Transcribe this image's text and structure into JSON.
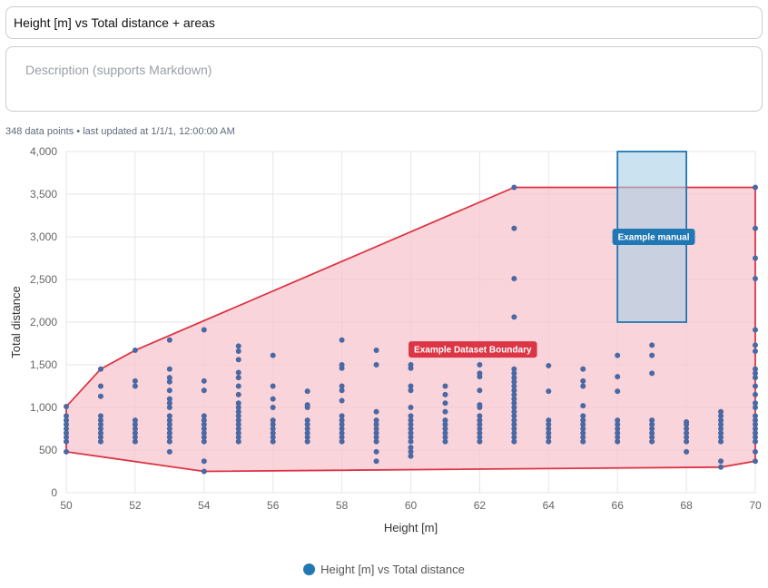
{
  "header": {
    "title_value": "Height [m] vs Total distance + areas",
    "description_placeholder": "Description (supports Markdown)",
    "meta_text": "348 data points • last updated at 1/1/1, 12:00:00 AM"
  },
  "chart_data": {
    "type": "scatter",
    "xlabel": "Height [m]",
    "ylabel": "Total distance",
    "xlim": [
      50,
      70
    ],
    "ylim": [
      0,
      4000
    ],
    "x_ticks": [
      50,
      52,
      54,
      56,
      58,
      60,
      62,
      64,
      66,
      68,
      70
    ],
    "y_ticks": [
      0,
      500,
      1000,
      1500,
      2000,
      2500,
      3000,
      3500,
      4000
    ],
    "y_tick_labels": [
      "0",
      "500",
      "1,000",
      "1,500",
      "2,000",
      "2,500",
      "3,000",
      "3,500",
      "4,000"
    ],
    "grid": true,
    "legend_position": "bottom-center",
    "series": [
      {
        "name": "Height [m] vs Total distance",
        "color": "#4a68a3",
        "points": [
          [
            50,
            480
          ],
          [
            50,
            600
          ],
          [
            50,
            650
          ],
          [
            50,
            700
          ],
          [
            50,
            750
          ],
          [
            50,
            800
          ],
          [
            50,
            850
          ],
          [
            50,
            900
          ],
          [
            50,
            1010
          ],
          [
            51,
            600
          ],
          [
            51,
            650
          ],
          [
            51,
            700
          ],
          [
            51,
            750
          ],
          [
            51,
            800
          ],
          [
            51,
            850
          ],
          [
            51,
            900
          ],
          [
            51,
            1130
          ],
          [
            51,
            1250
          ],
          [
            51,
            1450
          ],
          [
            52,
            600
          ],
          [
            52,
            650
          ],
          [
            52,
            700
          ],
          [
            52,
            750
          ],
          [
            52,
            800
          ],
          [
            52,
            850
          ],
          [
            52,
            1250
          ],
          [
            52,
            1310
          ],
          [
            52,
            1670
          ],
          [
            53,
            480
          ],
          [
            53,
            600
          ],
          [
            53,
            650
          ],
          [
            53,
            700
          ],
          [
            53,
            750
          ],
          [
            53,
            800
          ],
          [
            53,
            850
          ],
          [
            53,
            900
          ],
          [
            53,
            1000
          ],
          [
            53,
            1050
          ],
          [
            53,
            1100
          ],
          [
            53,
            1200
          ],
          [
            53,
            1300
          ],
          [
            53,
            1350
          ],
          [
            53,
            1450
          ],
          [
            53,
            1790
          ],
          [
            54,
            250
          ],
          [
            54,
            370
          ],
          [
            54,
            600
          ],
          [
            54,
            650
          ],
          [
            54,
            700
          ],
          [
            54,
            750
          ],
          [
            54,
            800
          ],
          [
            54,
            850
          ],
          [
            54,
            900
          ],
          [
            54,
            1200
          ],
          [
            54,
            1310
          ],
          [
            54,
            1910
          ],
          [
            55,
            600
          ],
          [
            55,
            650
          ],
          [
            55,
            700
          ],
          [
            55,
            750
          ],
          [
            55,
            800
          ],
          [
            55,
            850
          ],
          [
            55,
            900
          ],
          [
            55,
            950
          ],
          [
            55,
            1000
          ],
          [
            55,
            1050
          ],
          [
            55,
            1150
          ],
          [
            55,
            1250
          ],
          [
            55,
            1350
          ],
          [
            55,
            1410
          ],
          [
            55,
            1560
          ],
          [
            55,
            1660
          ],
          [
            55,
            1720
          ],
          [
            56,
            600
          ],
          [
            56,
            650
          ],
          [
            56,
            700
          ],
          [
            56,
            750
          ],
          [
            56,
            800
          ],
          [
            56,
            850
          ],
          [
            56,
            1000
          ],
          [
            56,
            1100
          ],
          [
            56,
            1250
          ],
          [
            56,
            1610
          ],
          [
            57,
            600
          ],
          [
            57,
            650
          ],
          [
            57,
            700
          ],
          [
            57,
            750
          ],
          [
            57,
            800
          ],
          [
            57,
            850
          ],
          [
            57,
            1000
          ],
          [
            57,
            1030
          ],
          [
            57,
            1190
          ],
          [
            58,
            600
          ],
          [
            58,
            650
          ],
          [
            58,
            700
          ],
          [
            58,
            750
          ],
          [
            58,
            800
          ],
          [
            58,
            850
          ],
          [
            58,
            900
          ],
          [
            58,
            1080
          ],
          [
            58,
            1200
          ],
          [
            58,
            1250
          ],
          [
            58,
            1460
          ],
          [
            58,
            1500
          ],
          [
            58,
            1790
          ],
          [
            59,
            370
          ],
          [
            59,
            480
          ],
          [
            59,
            600
          ],
          [
            59,
            650
          ],
          [
            59,
            700
          ],
          [
            59,
            750
          ],
          [
            59,
            800
          ],
          [
            59,
            850
          ],
          [
            59,
            950
          ],
          [
            59,
            1500
          ],
          [
            59,
            1670
          ],
          [
            60,
            430
          ],
          [
            60,
            480
          ],
          [
            60,
            530
          ],
          [
            60,
            600
          ],
          [
            60,
            650
          ],
          [
            60,
            700
          ],
          [
            60,
            750
          ],
          [
            60,
            800
          ],
          [
            60,
            850
          ],
          [
            60,
            900
          ],
          [
            60,
            1000
          ],
          [
            60,
            1200
          ],
          [
            60,
            1250
          ],
          [
            60,
            1460
          ],
          [
            60,
            1500
          ],
          [
            61,
            600
          ],
          [
            61,
            650
          ],
          [
            61,
            700
          ],
          [
            61,
            750
          ],
          [
            61,
            800
          ],
          [
            61,
            850
          ],
          [
            61,
            950
          ],
          [
            61,
            1050
          ],
          [
            61,
            1150
          ],
          [
            61,
            1250
          ],
          [
            62,
            600
          ],
          [
            62,
            650
          ],
          [
            62,
            700
          ],
          [
            62,
            750
          ],
          [
            62,
            800
          ],
          [
            62,
            850
          ],
          [
            62,
            900
          ],
          [
            62,
            1000
          ],
          [
            62,
            1030
          ],
          [
            62,
            1200
          ],
          [
            62,
            1360
          ],
          [
            62,
            1400
          ],
          [
            62,
            1500
          ],
          [
            63,
            600
          ],
          [
            63,
            650
          ],
          [
            63,
            700
          ],
          [
            63,
            750
          ],
          [
            63,
            800
          ],
          [
            63,
            850
          ],
          [
            63,
            900
          ],
          [
            63,
            950
          ],
          [
            63,
            1000
          ],
          [
            63,
            1050
          ],
          [
            63,
            1100
          ],
          [
            63,
            1150
          ],
          [
            63,
            1200
          ],
          [
            63,
            1250
          ],
          [
            63,
            1300
          ],
          [
            63,
            1350
          ],
          [
            63,
            1400
          ],
          [
            63,
            1450
          ],
          [
            63,
            2060
          ],
          [
            63,
            2510
          ],
          [
            63,
            3100
          ],
          [
            63,
            3580
          ],
          [
            64,
            600
          ],
          [
            64,
            650
          ],
          [
            64,
            700
          ],
          [
            64,
            750
          ],
          [
            64,
            800
          ],
          [
            64,
            850
          ],
          [
            64,
            1190
          ],
          [
            64,
            1490
          ],
          [
            65,
            600
          ],
          [
            65,
            650
          ],
          [
            65,
            700
          ],
          [
            65,
            750
          ],
          [
            65,
            800
          ],
          [
            65,
            850
          ],
          [
            65,
            900
          ],
          [
            65,
            1020
          ],
          [
            65,
            1250
          ],
          [
            65,
            1310
          ],
          [
            65,
            1450
          ],
          [
            66,
            600
          ],
          [
            66,
            650
          ],
          [
            66,
            700
          ],
          [
            66,
            750
          ],
          [
            66,
            800
          ],
          [
            66,
            850
          ],
          [
            66,
            1190
          ],
          [
            66,
            1360
          ],
          [
            66,
            1610
          ],
          [
            67,
            600
          ],
          [
            67,
            650
          ],
          [
            67,
            700
          ],
          [
            67,
            750
          ],
          [
            67,
            800
          ],
          [
            67,
            850
          ],
          [
            67,
            1400
          ],
          [
            67,
            1610
          ],
          [
            67,
            1730
          ],
          [
            68,
            480
          ],
          [
            68,
            600
          ],
          [
            68,
            650
          ],
          [
            68,
            700
          ],
          [
            68,
            750
          ],
          [
            68,
            800
          ],
          [
            68,
            830
          ],
          [
            69,
            300
          ],
          [
            69,
            370
          ],
          [
            69,
            600
          ],
          [
            69,
            650
          ],
          [
            69,
            700
          ],
          [
            69,
            750
          ],
          [
            69,
            800
          ],
          [
            69,
            850
          ],
          [
            69,
            900
          ],
          [
            69,
            950
          ],
          [
            70,
            370
          ],
          [
            70,
            480
          ],
          [
            70,
            600
          ],
          [
            70,
            650
          ],
          [
            70,
            700
          ],
          [
            70,
            750
          ],
          [
            70,
            800
          ],
          [
            70,
            850
          ],
          [
            70,
            900
          ],
          [
            70,
            1000
          ],
          [
            70,
            1050
          ],
          [
            70,
            1150
          ],
          [
            70,
            1250
          ],
          [
            70,
            1350
          ],
          [
            70,
            1400
          ],
          [
            70,
            1450
          ],
          [
            70,
            1660
          ],
          [
            70,
            1730
          ],
          [
            70,
            1910
          ],
          [
            70,
            2510
          ],
          [
            70,
            2750
          ],
          [
            70,
            3100
          ],
          [
            70,
            3580
          ]
        ]
      }
    ],
    "areas": [
      {
        "label": "Example Dataset Boundary",
        "shape": "polygon",
        "fill": "#f7c6cd",
        "stroke": "#dc3545",
        "vertices": [
          [
            50,
            480
          ],
          [
            50,
            1010
          ],
          [
            51,
            1450
          ],
          [
            52,
            1670
          ],
          [
            63,
            3580
          ],
          [
            70,
            3580
          ],
          [
            70,
            370
          ],
          [
            69,
            300
          ],
          [
            54,
            250
          ]
        ],
        "label_at": [
          61.8,
          1680
        ]
      },
      {
        "label": "Example manual",
        "shape": "rect",
        "fill": "#a9cfe6",
        "stroke": "#1f77b4",
        "x_range": [
          66,
          68
        ],
        "y_range": [
          2000,
          4000
        ],
        "label_at": [
          67.05,
          3000
        ]
      }
    ]
  }
}
